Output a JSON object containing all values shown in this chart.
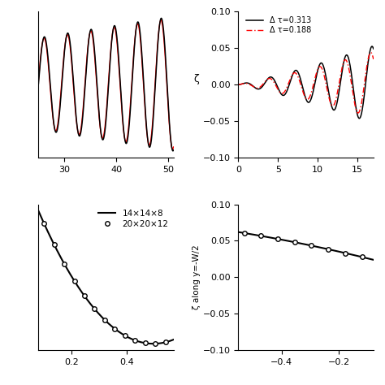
{
  "tl_xlim": [
    25,
    51
  ],
  "tl_xticks": [
    30,
    40,
    50
  ],
  "tr_ylabel": "ζ",
  "tr_xlim": [
    0,
    17
  ],
  "tr_xticks": [
    0,
    5,
    10,
    15
  ],
  "tr_ylim": [
    -0.1,
    0.1
  ],
  "tr_yticks": [
    -0.1,
    -0.05,
    0.0,
    0.05,
    0.1
  ],
  "tr_legend1": "Δ τ=0.313",
  "tr_legend2": "Δ τ=0.188",
  "bl_xlim": [
    0.08,
    0.57
  ],
  "bl_xticks": [
    0.2,
    0.4
  ],
  "bl_legend1": "14×14×8",
  "bl_legend2": "20×20×12",
  "br_ylabel": "ζ along y=-W/2",
  "br_xlim": [
    -0.55,
    -0.08
  ],
  "br_xticks": [
    -0.4,
    -0.2
  ],
  "br_ylim": [
    -0.1,
    0.1
  ],
  "br_yticks": [
    -0.1,
    -0.05,
    0.0,
    0.05,
    0.1
  ]
}
